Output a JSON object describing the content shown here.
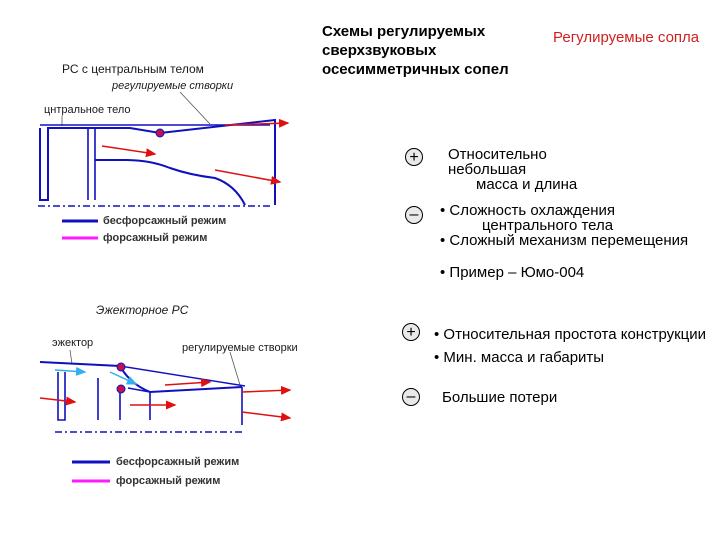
{
  "title": "Схемы регулируемых сверхзвуковых осесимметричных сопел",
  "subtitle": "Регулируемые сопла",
  "diagram_top": {
    "title": "РС с центральным телом",
    "label_flaps": "регулируемые створки",
    "label_body": "цнтральное тело",
    "legend_dry": "бесфорсажный режим",
    "legend_ab": "форсажный режим"
  },
  "diagram_bottom": {
    "title": "Эжекторное РС",
    "label_ejector": "эжектор",
    "label_flaps": "регулируемые створки",
    "legend_dry": "бесфорсажный режим",
    "legend_ab": "форсажный режим"
  },
  "block1": {
    "plus_1": "Относительно",
    "plus_2": "небольшая",
    "plus_3": "масса и длина",
    "minus_1": "• Сложность охлаждения",
    "minus_2": "центрального тела",
    "minus_3": "• Сложный механизм перемещения",
    "example": "• Пример – Юмо-004"
  },
  "block2": {
    "plus_1": "• Относительная простота конструкции",
    "plus_2": "• Мин. масса и габариты",
    "minus_1": "Большие потери"
  },
  "symbols": {
    "plus": "+",
    "minus": "–"
  },
  "colors": {
    "dry": "#1010c0",
    "afterburner": "#ff1aff",
    "flow": "#e01010",
    "ejector_flow": "#30b0f0"
  }
}
